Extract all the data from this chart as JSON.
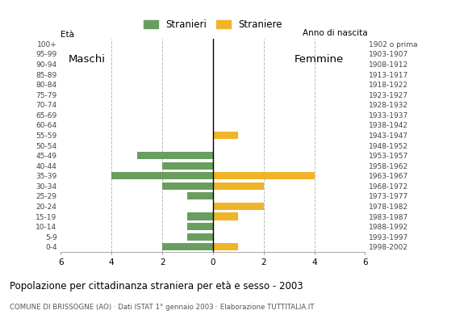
{
  "age_groups": [
    "100+",
    "95-99",
    "90-94",
    "85-89",
    "80-84",
    "75-79",
    "70-74",
    "65-69",
    "60-64",
    "55-59",
    "50-54",
    "45-49",
    "40-44",
    "35-39",
    "30-34",
    "25-29",
    "20-24",
    "15-19",
    "10-14",
    "5-9",
    "0-4"
  ],
  "birth_years": [
    "1902 o prima",
    "1903-1907",
    "1908-1912",
    "1913-1917",
    "1918-1922",
    "1923-1927",
    "1928-1932",
    "1933-1937",
    "1938-1942",
    "1943-1947",
    "1948-1952",
    "1953-1957",
    "1958-1962",
    "1963-1967",
    "1968-1972",
    "1973-1977",
    "1978-1982",
    "1983-1987",
    "1988-1992",
    "1993-1997",
    "1998-2002"
  ],
  "males": [
    0,
    0,
    0,
    0,
    0,
    0,
    0,
    0,
    0,
    0,
    0,
    3,
    2,
    4,
    2,
    1,
    0,
    1,
    1,
    1,
    2
  ],
  "females": [
    0,
    0,
    0,
    0,
    0,
    0,
    0,
    0,
    0,
    1,
    0,
    0,
    0,
    4,
    2,
    0,
    2,
    1,
    0,
    0,
    1
  ],
  "male_color": "#6a9e5e",
  "female_color": "#f0b429",
  "title": "Popolazione per cittadinanza straniera per età e sesso - 2003",
  "subtitle": "COMUNE DI BRISSOGNE (AO) · Dati ISTAT 1° gennaio 2003 · Elaborazione TUTTITALIA.IT",
  "legend_male": "Stranieri",
  "legend_female": "Straniere",
  "label_eta": "Età",
  "label_anno": "Anno di nascita",
  "label_maschi": "Maschi",
  "label_femmine": "Femmine",
  "xlim": 6,
  "background_color": "#ffffff",
  "grid_color": "#bbbbbb"
}
